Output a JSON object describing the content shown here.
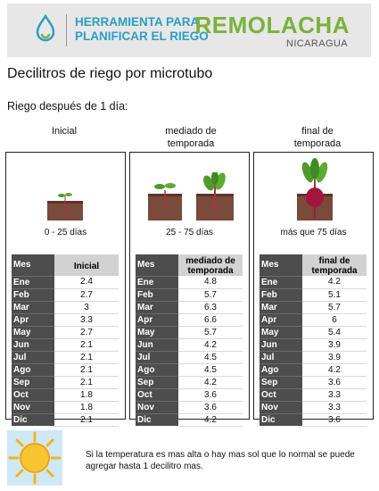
{
  "header": {
    "tool_line1": "HERRAMIENTA PARA",
    "tool_line2": "PLANIFICAR EL RIEGO",
    "brand": "REMOLACHA",
    "country": "NICARAGUA"
  },
  "page": {
    "title": "Decilitros de riego por microtubo",
    "subtitle": "Riego después de 1 día:"
  },
  "stages": [
    {
      "heading": "Inicial",
      "caption": "0 - 25 días",
      "table_header": "Inicial",
      "values": [
        "2.4",
        "2.7",
        "3",
        "3.3",
        "2.7",
        "2.1",
        "2.1",
        "2.1",
        "2.1",
        "1.8",
        "1.8",
        "2.1"
      ]
    },
    {
      "heading": "mediado de temporada",
      "caption": "25 - 75 días",
      "table_header": "mediado de temporada",
      "values": [
        "4.8",
        "5.7",
        "6.3",
        "6.6",
        "5.7",
        "4.2",
        "4.5",
        "4.5",
        "4.2",
        "3.6",
        "3.6",
        "4.2"
      ]
    },
    {
      "heading": "final de temporada",
      "caption": "más que 75 días",
      "table_header": "final de temporada",
      "values": [
        "4.2",
        "5.1",
        "5.7",
        "6",
        "5.4",
        "3.9",
        "3.9",
        "4.2",
        "3.6",
        "3.3",
        "3.3",
        "3.6"
      ]
    }
  ],
  "table": {
    "month_header": "Mes",
    "months": [
      "Ene",
      "Feb",
      "Mar",
      "Apr",
      "May",
      "Jun",
      "Jul",
      "Ago",
      "Sep",
      "Oct",
      "Nov",
      "Dic"
    ]
  },
  "footer": {
    "note": "Si la temperatura es mas alta o hay mas sol que lo normal se puede agregar hasta 1 decilitro mas.",
    "sun_icon": "sun-icon"
  },
  "colors": {
    "tool_blue": "#2c9ec3",
    "brand_green": "#7bb13c",
    "month_column": "#4d4d4d",
    "stage_header": "#d2d2d2"
  }
}
